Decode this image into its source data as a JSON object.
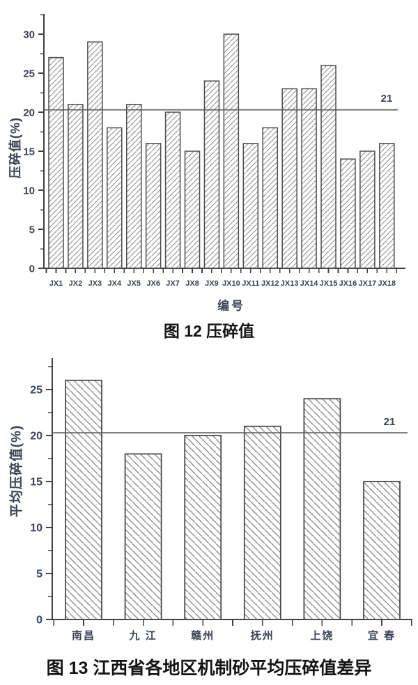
{
  "colors": {
    "axis": "#404040",
    "tick_text": "#3b4357",
    "hatch": "#8f8f8f",
    "bar_border": "#4d4d4d",
    "ref_line": "#5f5f5f",
    "caption_text": "#141414"
  },
  "chart_data": [
    {
      "type": "bar",
      "title": "图 12  压碎值",
      "xlabel": "编号",
      "ylabel": "压碎值(%)",
      "categories": [
        "JX1",
        "JX2",
        "JX3",
        "JX4",
        "JX5",
        "JX6",
        "JX7",
        "JX8",
        "JX9",
        "JX10",
        "JX11",
        "JX12",
        "JX13",
        "JX14",
        "JX15",
        "JX16",
        "JX17",
        "JX18"
      ],
      "values": [
        27,
        21,
        29,
        18,
        21,
        16,
        20,
        15,
        24,
        30,
        16,
        18,
        23,
        23,
        26,
        14,
        15,
        16
      ],
      "ylim": [
        0,
        32.5
      ],
      "yticks": [
        0,
        5,
        10,
        15,
        20,
        25,
        30
      ],
      "minor_step": 2.5,
      "grid": "off",
      "legend": "none",
      "ref_line": {
        "value": 21,
        "label": "21"
      },
      "hatch": "forward-diagonal"
    },
    {
      "type": "bar",
      "title": "图 13  江西省各地区机制砂平均压碎值差异",
      "xlabel": "",
      "ylabel": "平均压碎值(%)",
      "categories": [
        "南昌",
        "九 江",
        "赣州",
        "抚州",
        "上饶",
        "宜 春"
      ],
      "values": [
        26,
        18,
        20,
        21,
        24,
        15
      ],
      "ylim": [
        0,
        28.4
      ],
      "yticks": [
        0,
        5,
        10,
        15,
        20,
        25
      ],
      "minor_step": 2.5,
      "grid": "off",
      "legend": "none",
      "ref_line": {
        "value": 21,
        "label": "21"
      },
      "hatch": "backward-diagonal"
    }
  ]
}
